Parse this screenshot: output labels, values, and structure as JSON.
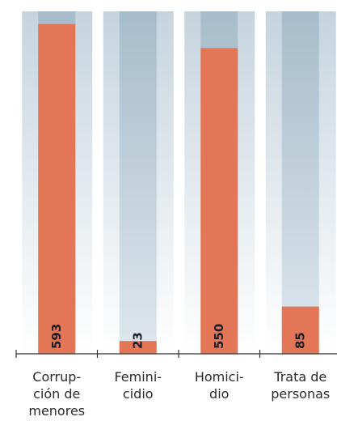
{
  "chart_data": {
    "type": "bar",
    "categories": [
      "Corrup-\nción de\nmenores",
      "Femini-\ncidio",
      "Homici-\ndio",
      "Trata de\npersonas"
    ],
    "values": [
      593,
      23,
      550,
      85
    ],
    "color": "#e27656",
    "ylim": [
      0,
      616
    ]
  }
}
